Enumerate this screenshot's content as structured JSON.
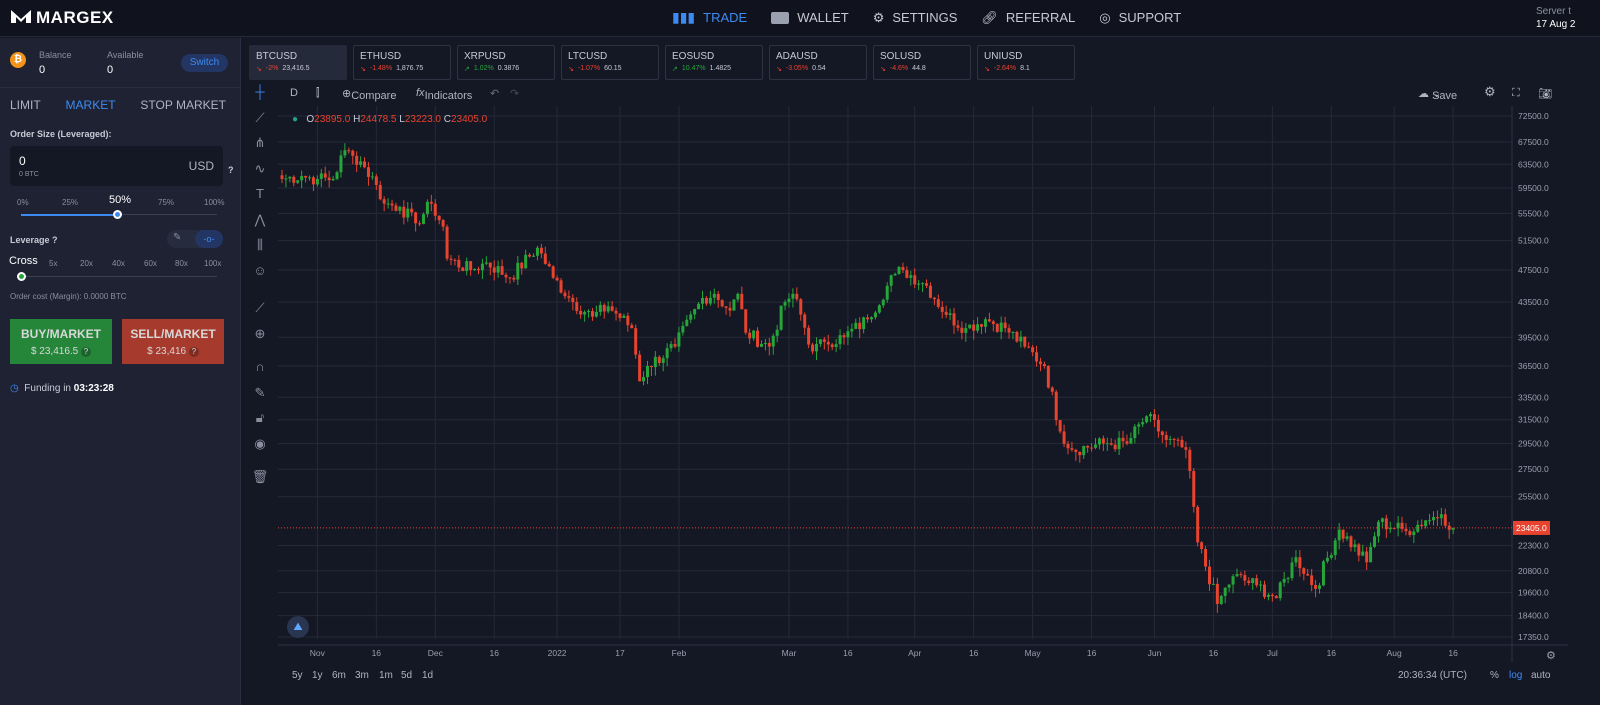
{
  "header": {
    "brand": "MARGEX",
    "nav": [
      {
        "label": "TRADE",
        "icon": "bar-chart-icon"
      },
      {
        "label": "WALLET",
        "icon": "wallet-icon"
      },
      {
        "label": "SETTINGS",
        "icon": "gear-icon"
      },
      {
        "label": "REFERRAL",
        "icon": "link-icon"
      },
      {
        "label": "SUPPORT",
        "icon": "lifebuoy-icon"
      }
    ],
    "server_label": "Server t",
    "server_date": "17 Aug 2"
  },
  "account": {
    "balance_label": "Balance",
    "balance": "0",
    "available_label": "Available",
    "available": "0",
    "switch_label": "Switch"
  },
  "order": {
    "tabs": [
      "LIMIT",
      "MARKET",
      "STOP MARKET"
    ],
    "active_tab": "MARKET",
    "size_label": "Order Size (Leveraged):",
    "size_value": "0",
    "size_btc": "0 BTC",
    "currency": "USD",
    "pct_marks": [
      "0%",
      "25%",
      "50%",
      "75%",
      "100%"
    ],
    "pct_value": 50,
    "leverage_label": "Leverage",
    "lev_marks": [
      "Cross",
      "5x",
      "20x",
      "40x",
      "60x",
      "80x",
      "100x"
    ],
    "cost": "Order cost (Margin): 0.0000 BTC",
    "buy_label": "BUY/MARKET",
    "buy_price": "$ 23,416.5",
    "sell_label": "SELL/MARKET",
    "sell_price": "$ 23,416",
    "funding_label": "Funding in",
    "funding_time": "03:23:28"
  },
  "tickers": [
    {
      "sym": "BTCUSD",
      "chg": "-2%",
      "price": "23,416.5",
      "up": false
    },
    {
      "sym": "ETHUSD",
      "chg": "-1.48%",
      "price": "1,876.75",
      "up": false
    },
    {
      "sym": "XRPUSD",
      "chg": "1.02%",
      "price": "0.3876",
      "up": true
    },
    {
      "sym": "LTCUSD",
      "chg": "-1.07%",
      "price": "60.15",
      "up": false
    },
    {
      "sym": "EOSUSD",
      "chg": "10.47%",
      "price": "1.4825",
      "up": true
    },
    {
      "sym": "ADAUSD",
      "chg": "-3.05%",
      "price": "0.54",
      "up": false
    },
    {
      "sym": "SOLUSD",
      "chg": "-4.6%",
      "price": "44.8",
      "up": false
    },
    {
      "sym": "UNIUSD",
      "chg": "-2.64%",
      "price": "8.1",
      "up": false
    }
  ],
  "toolbar": {
    "interval": "D",
    "compare": "Compare",
    "indicators": "Indicators",
    "save": "Save"
  },
  "ohlc": {
    "o": "23895.0",
    "h": "24478.5",
    "l": "23223.0",
    "c": "23405.0"
  },
  "bottom": {
    "ranges": [
      "5y",
      "1y",
      "6m",
      "3m",
      "1m",
      "5d",
      "1d"
    ],
    "time": "20:36:34 (UTC)",
    "pct": "%",
    "log": "log",
    "auto": "auto"
  },
  "chart_data": {
    "type": "candlestick",
    "symbol": "BTCUSD",
    "interval": "D",
    "scale": "log",
    "ylim": [
      17350,
      72500
    ],
    "y_ticks": [
      "72500.0",
      "67500.0",
      "63500.0",
      "59500.0",
      "55500.0",
      "51500.0",
      "47500.0",
      "43500.0",
      "39500.0",
      "36500.0",
      "33500.0",
      "31500.0",
      "29500.0",
      "27500.0",
      "25500.0",
      "22300.0",
      "20800.0",
      "19600.0",
      "18400.0",
      "17350.0"
    ],
    "x_ticks": [
      [
        "Nov",
        9
      ],
      [
        "16",
        24
      ],
      [
        "Dec",
        39
      ],
      [
        "16",
        54
      ],
      [
        "2022",
        70
      ],
      [
        "17",
        86
      ],
      [
        "Feb",
        101
      ],
      [
        "Mar",
        129
      ],
      [
        "16",
        144
      ],
      [
        "Apr",
        161
      ],
      [
        "16",
        176
      ],
      [
        "May",
        191
      ],
      [
        "16",
        206
      ],
      [
        "Jun",
        222
      ],
      [
        "16",
        237
      ],
      [
        "Jul",
        252
      ],
      [
        "16",
        267
      ],
      [
        "Aug",
        283
      ],
      [
        "16",
        298
      ]
    ],
    "last_price": 23405.0,
    "colors": {
      "up": "#26a63a",
      "down": "#e8432e"
    },
    "close_keypoints": [
      [
        0,
        61000
      ],
      [
        5,
        61500
      ],
      [
        9,
        61000
      ],
      [
        13,
        61000
      ],
      [
        16,
        66000
      ],
      [
        18,
        65000
      ],
      [
        20,
        64000
      ],
      [
        24,
        60000
      ],
      [
        26,
        57000
      ],
      [
        30,
        56500
      ],
      [
        34,
        54000
      ],
      [
        38,
        57000
      ],
      [
        41,
        53500
      ],
      [
        42,
        49000
      ],
      [
        48,
        47500
      ],
      [
        52,
        48500
      ],
      [
        58,
        46500
      ],
      [
        65,
        50500
      ],
      [
        69,
        46500
      ],
      [
        74,
        43500
      ],
      [
        79,
        41800
      ],
      [
        83,
        43000
      ],
      [
        89,
        40500
      ],
      [
        91,
        35000
      ],
      [
        93,
        36500
      ],
      [
        100,
        38500
      ],
      [
        107,
        44000
      ],
      [
        110,
        44500
      ],
      [
        114,
        42500
      ],
      [
        116,
        44500
      ],
      [
        118,
        40000
      ],
      [
        124,
        38500
      ],
      [
        128,
        43500
      ],
      [
        130,
        44500
      ],
      [
        135,
        38000
      ],
      [
        138,
        39000
      ],
      [
        143,
        39500
      ],
      [
        149,
        41500
      ],
      [
        156,
        47000
      ],
      [
        158,
        47500
      ],
      [
        164,
        45500
      ],
      [
        169,
        42000
      ],
      [
        174,
        40500
      ],
      [
        179,
        41500
      ],
      [
        184,
        40500
      ],
      [
        189,
        38500
      ],
      [
        194,
        36500
      ],
      [
        198,
        30500
      ],
      [
        201,
        29000
      ],
      [
        209,
        29500
      ],
      [
        215,
        29500
      ],
      [
        220,
        31800
      ],
      [
        225,
        29800
      ],
      [
        230,
        29000
      ],
      [
        233,
        22500
      ],
      [
        238,
        19000
      ],
      [
        242,
        20500
      ],
      [
        248,
        20000
      ],
      [
        253,
        19300
      ],
      [
        258,
        21600
      ],
      [
        263,
        19800
      ],
      [
        269,
        23300
      ],
      [
        276,
        21300
      ],
      [
        279,
        23800
      ],
      [
        286,
        23200
      ],
      [
        291,
        23900
      ],
      [
        295,
        24300
      ],
      [
        298,
        23405
      ]
    ]
  }
}
